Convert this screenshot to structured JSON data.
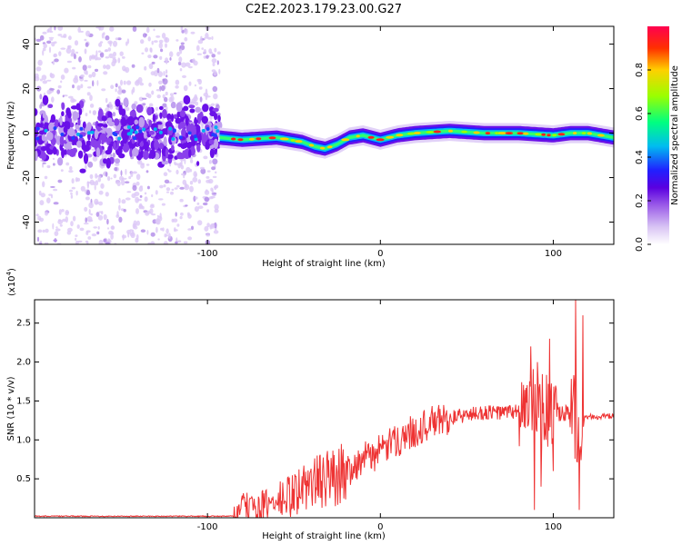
{
  "title": "C2E2.2023.179.23.00.G27",
  "chart_data": [
    {
      "type": "heatmap",
      "xlabel": "Height of straight line (km)",
      "ylabel": "Frequency (Hz)",
      "xlim": [
        -200,
        135
      ],
      "ylim": [
        -50,
        48
      ],
      "xticks": [
        -100,
        0,
        100
      ],
      "yticks": [
        -40,
        -20,
        0,
        20,
        40
      ],
      "colorbar": {
        "label": "Normalized spectral amplitude",
        "range": [
          0.0,
          1.0
        ],
        "ticks": [
          "0.0",
          "0.2",
          "0.4",
          "0.6",
          "0.8"
        ],
        "colormap": [
          "#ffffff",
          "#d8c4f4",
          "#9a5ae8",
          "#5a00e0",
          "#2020ff",
          "#00bcf0",
          "#00ff80",
          "#9aff00",
          "#ffd000",
          "#ff3000",
          "#ff0050"
        ]
      },
      "ridge": {
        "x": [
          -93,
          -80,
          -60,
          -45,
          -38,
          -32,
          -25,
          -18,
          -10,
          0,
          10,
          20,
          40,
          60,
          80,
          100,
          110,
          120,
          135
        ],
        "freq": [
          -2,
          -3,
          -2,
          -4,
          -6,
          -7,
          -5,
          -2,
          -1,
          -3,
          -1,
          0,
          1,
          0,
          0,
          -1,
          0,
          0,
          -2
        ]
      },
      "noise_region_x": [
        -200,
        -93
      ],
      "grid": false
    },
    {
      "type": "line",
      "xlabel": "Height of straight line (km)",
      "ylabel": "SNR (10 * v/v)",
      "multiplier_label": "(x10",
      "multiplier_exp": "4",
      "multiplier_close": ")",
      "xlim": [
        -200,
        135
      ],
      "ylim": [
        0,
        2.8
      ],
      "xticks": [
        -100,
        0,
        100
      ],
      "yticks": [
        "0.5",
        "1.0",
        "1.5",
        "2.0",
        "2.5"
      ],
      "color": "#ee3333",
      "series": [
        {
          "x": [
            -200,
            -150,
            -100,
            -85,
            -80,
            -70,
            -60,
            -50,
            -40,
            -30,
            -20,
            -10,
            0,
            10,
            20,
            30,
            40,
            50,
            60,
            70,
            80,
            85,
            90,
            95,
            100,
            105,
            110,
            115,
            120,
            135
          ],
          "y": [
            0.02,
            0.02,
            0.02,
            0.02,
            0.15,
            0.12,
            0.2,
            0.3,
            0.45,
            0.5,
            0.6,
            0.75,
            0.85,
            1.0,
            1.12,
            1.22,
            1.28,
            1.32,
            1.35,
            1.35,
            1.37,
            1.4,
            1.42,
            1.35,
            1.35,
            1.3,
            1.3,
            1.3,
            1.3,
            1.3
          ],
          "spikes": [
            {
              "x": 87,
              "y": 2.2
            },
            {
              "x": 89,
              "y": 0.1
            },
            {
              "x": 91,
              "y": 2.0
            },
            {
              "x": 93,
              "y": 0.4
            },
            {
              "x": 98,
              "y": 2.3
            },
            {
              "x": 100,
              "y": 0.6
            },
            {
              "x": 113,
              "y": 2.8
            },
            {
              "x": 115,
              "y": 0.1
            },
            {
              "x": 117,
              "y": 2.6
            }
          ]
        }
      ]
    }
  ]
}
